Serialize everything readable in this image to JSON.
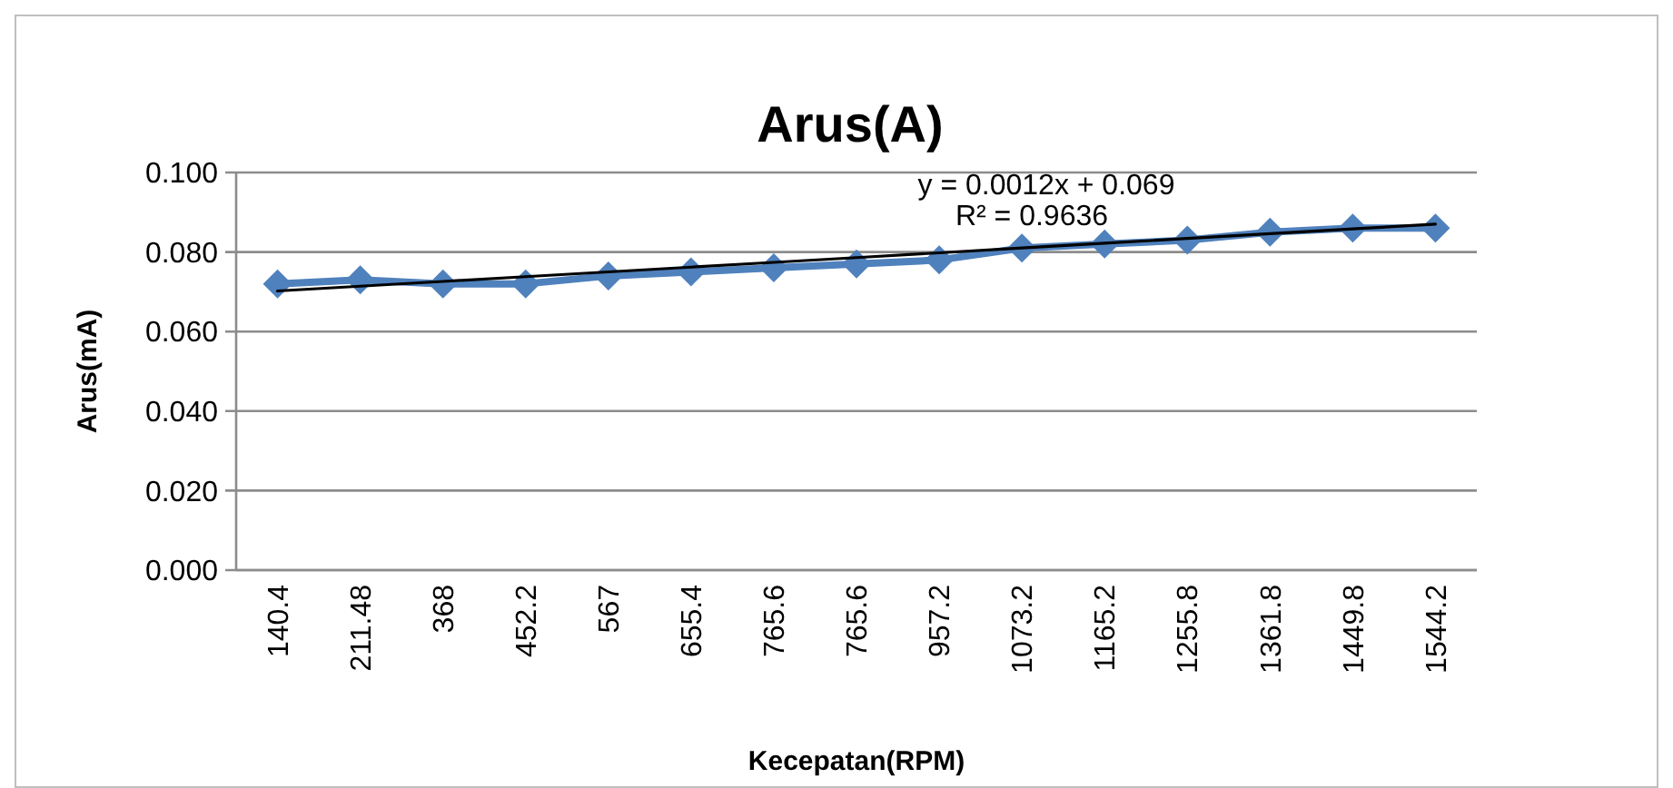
{
  "chart_data": {
    "type": "line",
    "title": "Arus(A)",
    "xlabel": "Kecepatan(RPM)",
    "ylabel": "Arus(mA)",
    "categories": [
      "140.4",
      "211.48",
      "368",
      "452.2",
      "567",
      "655.4",
      "765.6",
      "765.6",
      "957.2",
      "1073.2",
      "1165.2",
      "1255.8",
      "1361.8",
      "1449.8",
      "1544.2"
    ],
    "series": [
      {
        "color": "#4f81bd",
        "marker": "diamond",
        "values": [
          0.072,
          0.073,
          0.072,
          0.072,
          0.074,
          0.075,
          0.076,
          0.077,
          0.078,
          0.081,
          0.082,
          0.083,
          0.085,
          0.086,
          0.086
        ]
      },
      {
        "color": "#000000",
        "marker": "none",
        "values": [
          0.0702,
          0.0714,
          0.0726,
          0.0738,
          0.075,
          0.0762,
          0.0774,
          0.0786,
          0.0798,
          0.081,
          0.0822,
          0.0834,
          0.0846,
          0.0858,
          0.087
        ]
      }
    ],
    "annotations": [
      "y = 0.0012x + 0.069",
      "R² = 0.9636"
    ],
    "ylim": [
      0,
      0.1
    ],
    "yticks": [
      {
        "value": 0,
        "label": "0.000"
      },
      {
        "value": 0.02,
        "label": "0.020"
      },
      {
        "value": 0.04,
        "label": "0.040"
      },
      {
        "value": 0.06,
        "label": "0.060"
      },
      {
        "value": 0.08,
        "label": "0.080"
      },
      {
        "value": 0.1,
        "label": "0.100"
      }
    ],
    "grid": "y"
  }
}
